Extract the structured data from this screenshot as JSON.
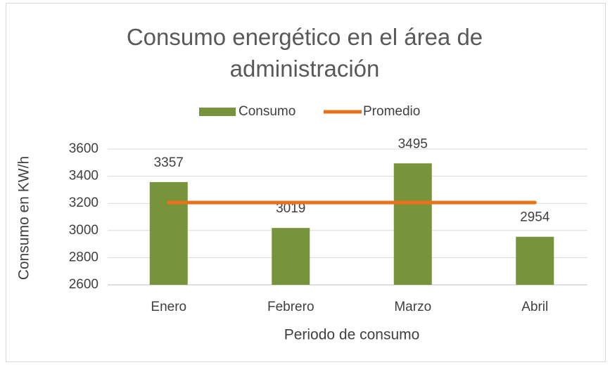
{
  "chart_data": {
    "type": "bar",
    "title": "Consumo energético en el área de administración",
    "x_label": "Periodo de consumo",
    "y_label": "Consumo en KW/h",
    "categories": [
      "Enero",
      "Febrero",
      "Marzo",
      "Abril"
    ],
    "series": [
      {
        "name": "Consumo",
        "type": "bar",
        "color": "#77933c",
        "values": [
          3357,
          3019,
          3495,
          2954
        ]
      },
      {
        "name": "Promedio",
        "type": "line",
        "color": "#e8711c",
        "values": [
          3206.25,
          3206.25,
          3206.25,
          3206.25
        ]
      }
    ],
    "ylim": [
      2600,
      3600
    ],
    "yticks": [
      2600,
      2800,
      3000,
      3200,
      3400,
      3600
    ],
    "grid": true,
    "legend": "top",
    "data_labels_series": 0
  }
}
